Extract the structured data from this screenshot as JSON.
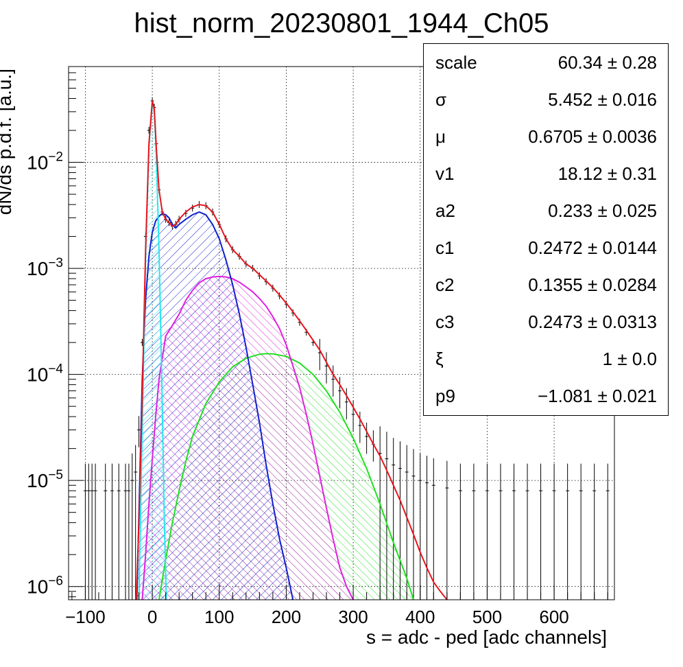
{
  "chart_data": {
    "type": "histogram_with_fits",
    "title": "hist_norm_20230801_1944_Ch05",
    "xlabel": "s = adc - ped [adc channels]",
    "ylabel": "dN/ds p.d.f. [a.u.]",
    "xlim": [
      -125,
      690
    ],
    "ylim": [
      7.5e-07,
      0.08
    ],
    "yscale": "log",
    "grid": true,
    "x_ticks": [
      -100,
      0,
      100,
      200,
      300,
      400,
      500,
      600
    ],
    "y_ticks": [
      {
        "value": 1e-06,
        "base": "10",
        "exp": "−6"
      },
      {
        "value": 1e-05,
        "base": "10",
        "exp": "−5"
      },
      {
        "value": 0.0001,
        "base": "10",
        "exp": "−4"
      },
      {
        "value": 0.001,
        "base": "10",
        "exp": "−3"
      },
      {
        "value": 0.01,
        "base": "10",
        "exp": "−2"
      }
    ],
    "colors": {
      "data": "#000000",
      "total_fit": "#e8141c",
      "pedestal": "#22e8ee",
      "one_pe": "#1020cc",
      "two_pe": "#e020e0",
      "three_pe": "#20e020"
    },
    "data_points": [
      [
        -100,
        8e-06
      ],
      [
        -95,
        8e-06
      ],
      [
        -90,
        8e-06
      ],
      [
        -85,
        8e-06
      ],
      [
        -70,
        8e-06
      ],
      [
        -60,
        8e-06
      ],
      [
        -50,
        8e-06
      ],
      [
        -40,
        8e-06
      ],
      [
        -35,
        8e-06
      ],
      [
        -30,
        1e-05
      ],
      [
        -25,
        1.2e-05
      ],
      [
        -20,
        3e-05
      ],
      [
        -15,
        0.0002
      ],
      [
        -10,
        0.002
      ],
      [
        -5,
        0.02
      ],
      [
        0,
        0.038
      ],
      [
        3,
        0.033
      ],
      [
        6,
        0.015
      ],
      [
        10,
        0.0055
      ],
      [
        15,
        0.0034
      ],
      [
        20,
        0.0029
      ],
      [
        25,
        0.0027
      ],
      [
        30,
        0.0025
      ],
      [
        35,
        0.0026
      ],
      [
        40,
        0.0029
      ],
      [
        50,
        0.0033
      ],
      [
        60,
        0.0037
      ],
      [
        70,
        0.004
      ],
      [
        80,
        0.0039
      ],
      [
        90,
        0.0034
      ],
      [
        100,
        0.0026
      ],
      [
        110,
        0.0019
      ],
      [
        120,
        0.0015
      ],
      [
        130,
        0.0013
      ],
      [
        140,
        0.0011
      ],
      [
        150,
        0.001
      ],
      [
        160,
        0.00085
      ],
      [
        170,
        0.00075
      ],
      [
        180,
        0.00065
      ],
      [
        190,
        0.00055
      ],
      [
        200,
        0.00046
      ],
      [
        210,
        0.00038
      ],
      [
        220,
        0.00031
      ],
      [
        230,
        0.00025
      ],
      [
        240,
        0.0002
      ],
      [
        250,
        0.00016
      ],
      [
        260,
        0.00012
      ],
      [
        270,
        9e-05
      ],
      [
        280,
        7e-05
      ],
      [
        290,
        5.5e-05
      ],
      [
        300,
        4.2e-05
      ],
      [
        310,
        3.3e-05
      ],
      [
        320,
        2.6e-05
      ],
      [
        330,
        2.2e-05
      ],
      [
        340,
        1.8e-05
      ],
      [
        350,
        1.6e-05
      ],
      [
        360,
        1.4e-05
      ],
      [
        370,
        1.3e-05
      ],
      [
        380,
        1.2e-05
      ],
      [
        390,
        1.1e-05
      ],
      [
        400,
        1e-05
      ],
      [
        410,
        9.5e-06
      ],
      [
        420,
        9e-06
      ],
      [
        440,
        8.5e-06
      ],
      [
        460,
        8e-06
      ],
      [
        480,
        8e-06
      ],
      [
        500,
        8e-06
      ],
      [
        520,
        8e-06
      ],
      [
        540,
        8e-06
      ],
      [
        560,
        8e-06
      ],
      [
        580,
        8e-06
      ],
      [
        600,
        8e-06
      ],
      [
        620,
        8e-06
      ],
      [
        640,
        8e-06
      ],
      [
        660,
        8e-06
      ],
      [
        680,
        8e-06
      ]
    ],
    "series": [
      {
        "key": "total_fit",
        "points": [
          [
            -24,
            7.5e-07
          ],
          [
            -20,
            4e-06
          ],
          [
            -15,
            6e-05
          ],
          [
            -10,
            0.0015
          ],
          [
            -5,
            0.015
          ],
          [
            0,
            0.038
          ],
          [
            3,
            0.032
          ],
          [
            6,
            0.014
          ],
          [
            10,
            0.0055
          ],
          [
            15,
            0.0034
          ],
          [
            20,
            0.0029
          ],
          [
            25,
            0.0027
          ],
          [
            30,
            0.0025
          ],
          [
            35,
            0.0026
          ],
          [
            40,
            0.0029
          ],
          [
            50,
            0.0034
          ],
          [
            60,
            0.0038
          ],
          [
            70,
            0.004
          ],
          [
            80,
            0.0039
          ],
          [
            90,
            0.0034
          ],
          [
            100,
            0.0026
          ],
          [
            110,
            0.0019
          ],
          [
            120,
            0.0015
          ],
          [
            130,
            0.0013
          ],
          [
            140,
            0.0011
          ],
          [
            150,
            0.001
          ],
          [
            160,
            0.00087
          ],
          [
            170,
            0.00076
          ],
          [
            180,
            0.00066
          ],
          [
            190,
            0.00056
          ],
          [
            200,
            0.00047
          ],
          [
            210,
            0.00039
          ],
          [
            220,
            0.00032
          ],
          [
            230,
            0.00026
          ],
          [
            240,
            0.00021
          ],
          [
            250,
            0.00017
          ],
          [
            260,
            0.00013
          ],
          [
            270,
            0.0001
          ],
          [
            280,
            8e-05
          ],
          [
            290,
            6.3e-05
          ],
          [
            300,
            4.9e-05
          ],
          [
            310,
            3.8e-05
          ],
          [
            320,
            2.9e-05
          ],
          [
            330,
            2.2e-05
          ],
          [
            340,
            1.7e-05
          ],
          [
            350,
            1.25e-05
          ],
          [
            360,
            9e-06
          ],
          [
            370,
            6.5e-06
          ],
          [
            380,
            4.5e-06
          ],
          [
            390,
            3.1e-06
          ],
          [
            400,
            2.1e-06
          ],
          [
            410,
            1.5e-06
          ],
          [
            420,
            1.1e-06
          ],
          [
            430,
            9e-07
          ],
          [
            440,
            7.5e-07
          ]
        ]
      },
      {
        "key": "pedestal",
        "points": [
          [
            -20,
            7.5e-07
          ],
          [
            -15,
            3e-05
          ],
          [
            -10,
            0.0013
          ],
          [
            -5,
            0.014
          ],
          [
            0,
            0.036
          ],
          [
            3,
            0.03
          ],
          [
            6,
            0.012
          ],
          [
            10,
            0.0015
          ],
          [
            14,
            0.0001
          ],
          [
            18,
            4e-06
          ],
          [
            21,
            7.5e-07
          ]
        ]
      },
      {
        "key": "one_pe",
        "points": [
          [
            -23,
            7.5e-07
          ],
          [
            -20,
            5e-06
          ],
          [
            -15,
            9e-05
          ],
          [
            -10,
            0.0005
          ],
          [
            -5,
            0.0013
          ],
          [
            0,
            0.0022
          ],
          [
            5,
            0.0028
          ],
          [
            10,
            0.0031
          ],
          [
            15,
            0.0033
          ],
          [
            20,
            0.0032
          ],
          [
            25,
            0.003
          ],
          [
            30,
            0.0026
          ],
          [
            35,
            0.0024
          ],
          [
            40,
            0.0026
          ],
          [
            50,
            0.0029
          ],
          [
            60,
            0.0032
          ],
          [
            70,
            0.0034
          ],
          [
            80,
            0.0032
          ],
          [
            90,
            0.0026
          ],
          [
            100,
            0.0019
          ],
          [
            110,
            0.0012
          ],
          [
            120,
            0.0007
          ],
          [
            130,
            0.00037
          ],
          [
            140,
            0.00018
          ],
          [
            150,
            8e-05
          ],
          [
            160,
            3.5e-05
          ],
          [
            170,
            1.4e-05
          ],
          [
            180,
            6e-06
          ],
          [
            190,
            2.8e-06
          ],
          [
            200,
            1.5e-06
          ],
          [
            210,
            7.5e-07
          ]
        ]
      },
      {
        "key": "two_pe",
        "points": [
          [
            -15,
            7.5e-07
          ],
          [
            -10,
            2e-06
          ],
          [
            -5,
            6e-06
          ],
          [
            0,
            1.6e-05
          ],
          [
            5,
            4e-05
          ],
          [
            10,
            9e-05
          ],
          [
            20,
            0.00023
          ],
          [
            30,
            0.00029
          ],
          [
            40,
            0.00037
          ],
          [
            50,
            0.0005
          ],
          [
            60,
            0.00062
          ],
          [
            70,
            0.00073
          ],
          [
            80,
            0.0008
          ],
          [
            90,
            0.00083
          ],
          [
            100,
            0.00084
          ],
          [
            110,
            0.00083
          ],
          [
            120,
            0.0008
          ],
          [
            130,
            0.00074
          ],
          [
            140,
            0.00067
          ],
          [
            150,
            0.0006
          ],
          [
            160,
            0.00052
          ],
          [
            170,
            0.00044
          ],
          [
            180,
            0.00035
          ],
          [
            190,
            0.00027
          ],
          [
            200,
            0.00019
          ],
          [
            210,
            0.00012
          ],
          [
            220,
            7.5e-05
          ],
          [
            230,
            4.2e-05
          ],
          [
            240,
            2.2e-05
          ],
          [
            250,
            1.1e-05
          ],
          [
            260,
            5.5e-06
          ],
          [
            270,
            2.8e-06
          ],
          [
            280,
            1.5e-06
          ],
          [
            290,
            1e-06
          ],
          [
            300,
            7.5e-07
          ]
        ]
      },
      {
        "key": "three_pe",
        "points": [
          [
            10,
            7.5e-07
          ],
          [
            20,
            1.8e-06
          ],
          [
            30,
            4e-06
          ],
          [
            40,
            8e-06
          ],
          [
            50,
            1.5e-05
          ],
          [
            60,
            2.6e-05
          ],
          [
            80,
            5.3e-05
          ],
          [
            100,
            8.5e-05
          ],
          [
            120,
            0.000118
          ],
          [
            140,
            0.000142
          ],
          [
            160,
            0.000155
          ],
          [
            170,
            0.000157
          ],
          [
            180,
            0.000156
          ],
          [
            200,
            0.000148
          ],
          [
            220,
            0.000128
          ],
          [
            240,
            0.0001
          ],
          [
            260,
            7e-05
          ],
          [
            280,
            4.4e-05
          ],
          [
            300,
            2.5e-05
          ],
          [
            320,
            1.3e-05
          ],
          [
            340,
            6e-06
          ],
          [
            360,
            2.6e-06
          ],
          [
            380,
            1.2e-06
          ],
          [
            390,
            7.5e-07
          ]
        ]
      }
    ]
  },
  "stats": [
    {
      "name": "scale",
      "value": "60.34 ± 0.28"
    },
    {
      "name": "σ",
      "value": "5.452 ± 0.016"
    },
    {
      "name": "μ",
      "value": "0.6705 ± 0.0036"
    },
    {
      "name": "v1",
      "value": "18.12 ± 0.31"
    },
    {
      "name": "a2",
      "value": "0.233 ± 0.025"
    },
    {
      "name": "c1",
      "value": "0.2472 ± 0.0144"
    },
    {
      "name": "c2",
      "value": "0.1355 ± 0.0284"
    },
    {
      "name": "c3",
      "value": "0.2473 ± 0.0313"
    },
    {
      "name": "ξ",
      "value": "1 ± 0.0"
    },
    {
      "name": "p9",
      "value": "−1.081 ± 0.021"
    }
  ]
}
